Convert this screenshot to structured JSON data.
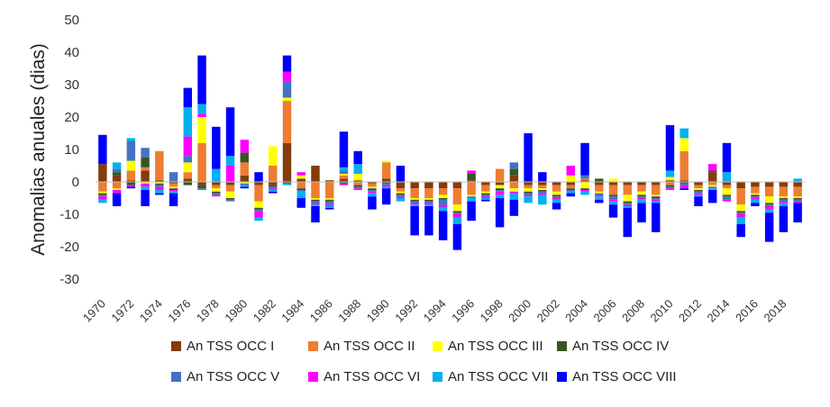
{
  "chart_data": {
    "type": "stacked-bar",
    "title": "",
    "xlabel": "",
    "ylabel": "Anomalias anuales (dias)",
    "ylim": [
      -30,
      50
    ],
    "yticks": [
      50,
      40,
      30,
      20,
      10,
      0,
      -10,
      -20,
      -30
    ],
    "xtick_labels": [
      "1970",
      "1972",
      "1974",
      "1976",
      "1978",
      "1980",
      "1982",
      "1984",
      "1986",
      "1988",
      "1990",
      "1992",
      "1994",
      "1996",
      "1998",
      "2000",
      "2002",
      "2004",
      "2006",
      "2008",
      "2010",
      "2012",
      "2014",
      "2016",
      "2018"
    ],
    "categories": [
      "1970",
      "1971",
      "1972",
      "1973",
      "1974",
      "1975",
      "1976",
      "1977",
      "1978",
      "1979",
      "1980",
      "1981",
      "1982",
      "1983",
      "1984",
      "1985",
      "1986",
      "1987",
      "1988",
      "1989",
      "1990",
      "1991",
      "1992",
      "1993",
      "1994",
      "1995",
      "1996",
      "1997",
      "1998",
      "1999",
      "2000",
      "2001",
      "2002",
      "2003",
      "2004",
      "2005",
      "2006",
      "2007",
      "2008",
      "2009",
      "2010",
      "2011",
      "2012",
      "2013",
      "2014",
      "2015",
      "2016",
      "2017",
      "2018",
      "2019"
    ],
    "series": [
      {
        "name": "An TSS OCC I",
        "color": "#843C0C",
        "values": [
          5.5,
          2,
          0.5,
          3.5,
          0.5,
          -0.5,
          1,
          -1,
          -1,
          -1,
          2,
          -1,
          -1,
          12,
          1,
          5,
          0.5,
          1,
          0.5,
          -0.5,
          1,
          -2,
          -2,
          -2,
          -2,
          -2,
          0.5,
          -1,
          -1,
          2,
          -1,
          -1,
          -1,
          -1,
          0.5,
          -1,
          -1,
          -1,
          -1,
          -1,
          0.5,
          0.5,
          -1,
          3,
          -1,
          -2,
          -1.5,
          -1.5,
          -1.5,
          -1.5
        ]
      },
      {
        "name": "An TSS OCC II",
        "color": "#ED7D31",
        "values": [
          -3,
          -2,
          3,
          1,
          9,
          -1,
          2,
          12,
          -1,
          -2,
          4,
          -5,
          5,
          13,
          -2,
          -5,
          -5,
          1,
          -1,
          -1,
          5,
          -1,
          -3,
          -3,
          -2,
          -5,
          -4,
          -2,
          4,
          -2,
          -1,
          -1,
          -2,
          -1,
          0.5,
          -2,
          -3,
          -3,
          -2,
          -3,
          -1,
          9,
          -1,
          -1,
          -1,
          -5,
          -2,
          -3,
          -3,
          -3
        ]
      },
      {
        "name": "An TSS OCC III",
        "color": "#FFFF00",
        "values": [
          -0.5,
          -0.5,
          3,
          -0.5,
          -0.5,
          -0.5,
          3,
          8,
          -1,
          -2,
          -0.5,
          -2,
          6,
          1,
          1,
          -0.5,
          -0.5,
          0.5,
          2,
          -0.5,
          0.5,
          -0.5,
          -0.5,
          -0.5,
          -1,
          -2,
          -0.5,
          -0.5,
          -1,
          -1,
          -1,
          -0.5,
          -1,
          2,
          -2,
          -0.5,
          1,
          -2,
          -1,
          -0.5,
          1,
          4,
          -0.5,
          -0.5,
          -2,
          -2,
          -0.5,
          -2,
          -0.5,
          -0.5
        ]
      },
      {
        "name": "An TSS OCC IV",
        "color": "#375623",
        "values": [
          -0.5,
          1,
          -1,
          3,
          -0.5,
          -0.5,
          -1,
          -1,
          -0.5,
          -0.5,
          3,
          -0.5,
          -0.5,
          -0.5,
          -0.5,
          -0.5,
          -0.5,
          -0.5,
          -0.5,
          -0.5,
          -0.5,
          -0.5,
          -0.5,
          -0.5,
          -0.5,
          -0.5,
          2,
          -0.5,
          -0.5,
          2,
          -0.5,
          -0.5,
          -0.5,
          -0.5,
          -0.5,
          1,
          -0.5,
          -0.5,
          -0.5,
          -0.5,
          -0.5,
          -0.5,
          -0.5,
          0.5,
          -0.5,
          -0.5,
          -0.5,
          -0.5,
          -0.5,
          -0.5
        ]
      },
      {
        "name": "An TSS OCC V",
        "color": "#4472C4",
        "values": [
          -0.5,
          1,
          6,
          3,
          -0.5,
          3,
          2,
          -0.5,
          -0.5,
          -0.5,
          -0.5,
          -0.5,
          -0.5,
          5,
          -0.5,
          -0.5,
          -1,
          1,
          -0.5,
          -0.5,
          -0.5,
          -0.5,
          -0.5,
          -0.5,
          -2,
          -0.5,
          -0.5,
          -0.5,
          -0.5,
          2,
          -0.5,
          -0.5,
          -0.5,
          -0.5,
          1,
          -0.5,
          -1,
          -0.5,
          -0.5,
          -0.5,
          -0.5,
          -0.5,
          -0.5,
          -0.5,
          -1,
          -0.5,
          -0.5,
          -0.5,
          -0.5,
          -0.5
        ]
      },
      {
        "name": "An TSS OCC VI",
        "color": "#FF00FF",
        "values": [
          -1,
          -1,
          -0.5,
          -1,
          -1,
          -0.5,
          6,
          1,
          -0.5,
          5,
          4,
          -2,
          -0.5,
          3,
          1,
          -0.5,
          -0.5,
          -0.5,
          -0.5,
          -0.5,
          -0.5,
          -0.5,
          -0.5,
          -0.5,
          -0.5,
          -1,
          1,
          -0.5,
          -1,
          -0.5,
          -0.5,
          -0.5,
          -0.5,
          3,
          -0.5,
          -0.5,
          -0.5,
          -0.5,
          -0.5,
          -0.5,
          -0.5,
          -1,
          -0.5,
          2,
          -0.5,
          -1,
          -0.5,
          -1,
          -0.5,
          -0.5
        ]
      },
      {
        "name": "An TSS OCC VII",
        "color": "#00B0F0",
        "values": [
          -1,
          2,
          1,
          -1,
          -1,
          -0.5,
          9,
          3,
          4,
          3,
          -0.5,
          -1,
          -0.5,
          -0.5,
          -2,
          -0.5,
          -0.5,
          1,
          3,
          -1,
          -0.5,
          -1,
          -0.5,
          -0.5,
          -1,
          -2,
          -1,
          -0.5,
          -1,
          -2,
          -2,
          -3,
          -1,
          -0.5,
          -1,
          -1,
          -1,
          -0.5,
          -1,
          -0.5,
          2,
          3,
          -0.5,
          -0.5,
          3,
          -2,
          -1,
          -1,
          -1,
          1
        ]
      },
      {
        "name": "An TSS OCC VIII",
        "color": "#0000FF",
        "values": [
          9,
          -4,
          -0.5,
          -5,
          -0.5,
          -4,
          6,
          15,
          13,
          15,
          -0.5,
          3,
          -0.5,
          5,
          -3,
          -5,
          -0.5,
          11,
          4,
          -4,
          -5,
          5,
          -9,
          -9,
          -9,
          -8,
          -6,
          -0.5,
          -9,
          -5,
          15,
          3,
          -2,
          -1,
          10,
          -1,
          -4,
          -9,
          -6,
          -9,
          14,
          -0.5,
          -3,
          -4,
          9,
          -4,
          -1,
          -9,
          -8,
          -6
        ]
      }
    ]
  }
}
